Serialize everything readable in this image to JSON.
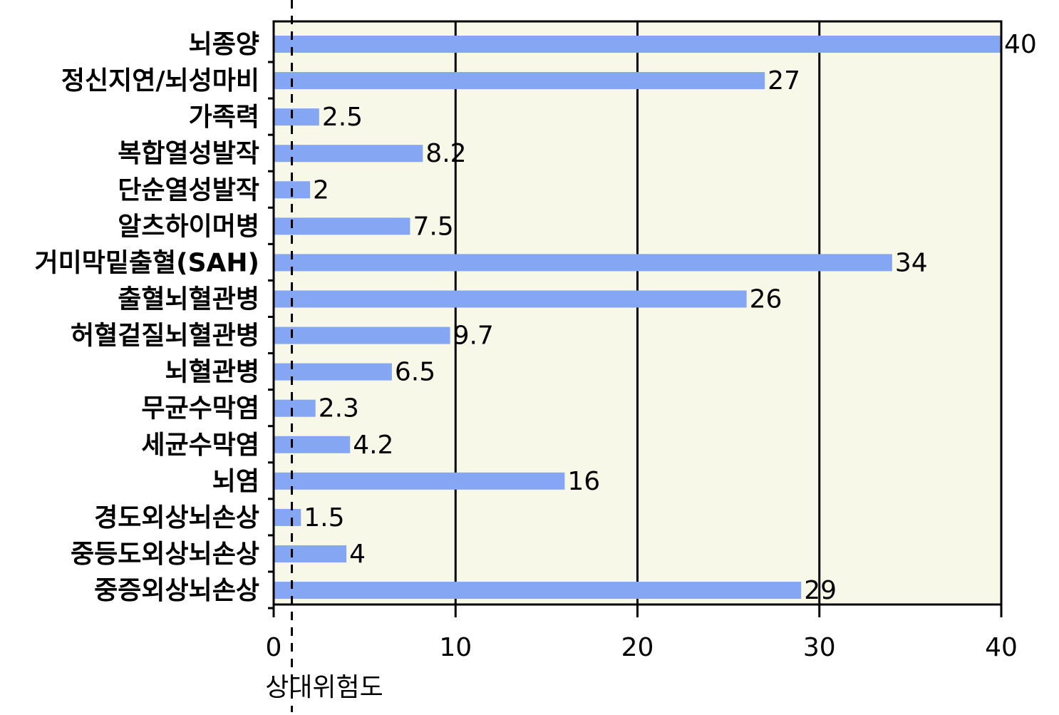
{
  "chart_data": {
    "type": "hbar",
    "categories": [
      "뇌종양",
      "정신지연/뇌성마비",
      "가족력",
      "복합열성발작",
      "단순열성발작",
      "알츠하이머병",
      "거미막밑출혈(SAH)",
      "출혈뇌혈관병",
      "허혈겉질뇌혈관병",
      "뇌혈관병",
      "무균수막염",
      "세균수막염",
      "뇌염",
      "경도외상뇌손상",
      "중등도외상뇌손상",
      "중증외상뇌손상"
    ],
    "values": [
      40,
      27,
      2.5,
      8.2,
      2,
      7.5,
      34,
      26,
      9.7,
      6.5,
      2.3,
      4.2,
      16,
      1.5,
      4,
      29
    ],
    "color": "#85a6f2",
    "xlabel": "상대위험도",
    "xlim": [
      0,
      40
    ],
    "xticks": [
      0,
      10,
      20,
      30,
      40
    ],
    "grid": true,
    "reference_line": 1
  }
}
